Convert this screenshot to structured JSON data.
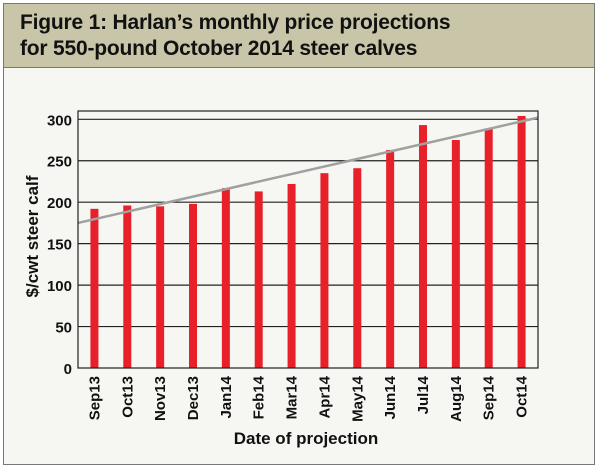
{
  "title_line1": "Figure 1: Harlan’s monthly price projections",
  "title_line2": "for 550-pound October 2014 steer calves",
  "colors": {
    "bar": "#e8202a",
    "trend": "#a0a0a0",
    "title_bg": "#c9c5a8"
  },
  "chart_data": {
    "type": "bar",
    "categories": [
      "Sep13",
      "Oct13",
      "Nov13",
      "Dec13",
      "Jan14",
      "Feb14",
      "Mar14",
      "Apr14",
      "May14",
      "Jun14",
      "Jul14",
      "Aug14",
      "Sep14",
      "Oct14"
    ],
    "values": [
      192,
      196,
      195,
      198,
      217,
      213,
      222,
      235,
      241,
      263,
      293,
      275,
      289,
      304
    ],
    "trendline": {
      "start": 175,
      "end": 302
    },
    "xlabel": "Date of projection",
    "ylabel": "$/cwt steer calf",
    "ylim": [
      0,
      310
    ],
    "yticks": [
      0,
      50,
      100,
      150,
      200,
      250,
      300
    ],
    "grid": true
  }
}
